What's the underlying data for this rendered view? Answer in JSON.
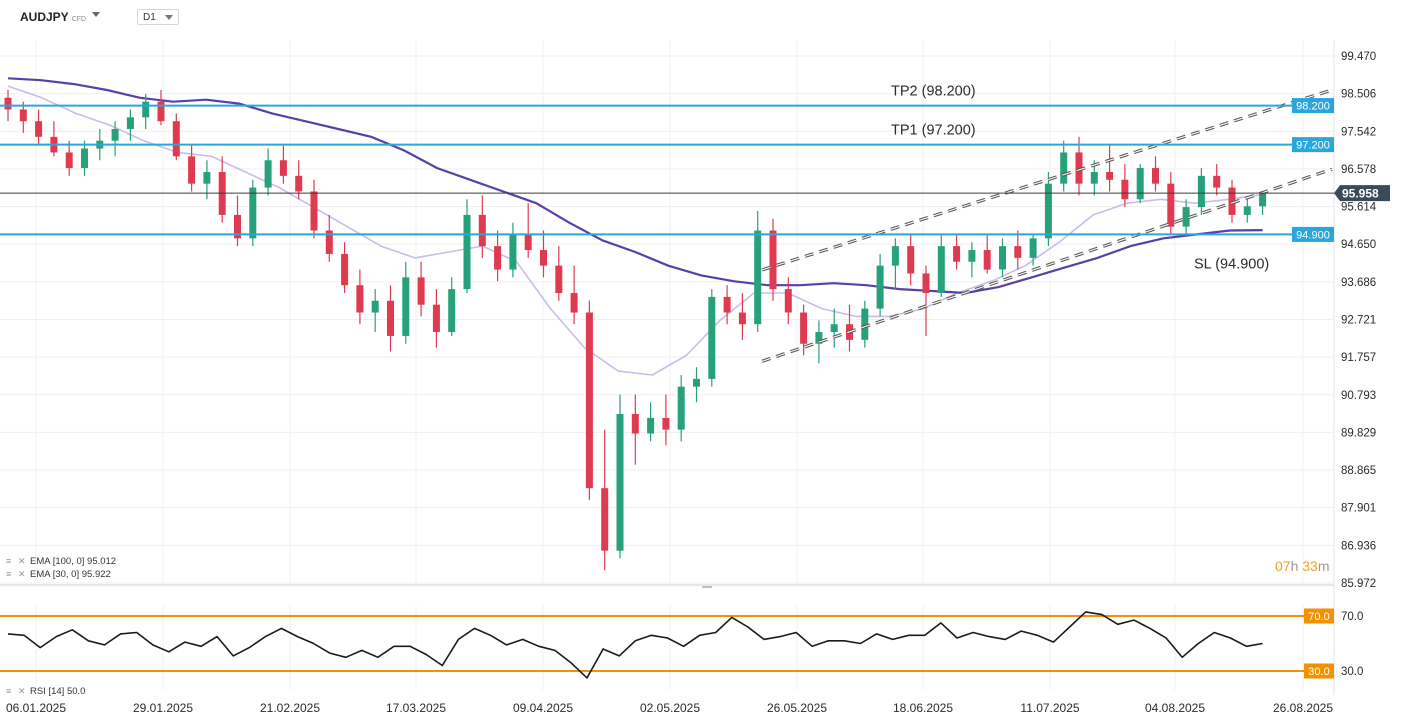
{
  "header": {
    "symbol": "AUDJPY",
    "symbol_type": "CFD",
    "timeframe": "D1"
  },
  "indicators": {
    "ema100": {
      "label": "EMA [100, 0] 95.012"
    },
    "ema30": {
      "label": "EMA [30, 0] 95.922"
    },
    "rsi": {
      "label": "RSI [14] 50.0"
    }
  },
  "timer": {
    "hours": "07",
    "h_unit": "h",
    "minutes": "33",
    "m_unit": "m"
  },
  "colors": {
    "up": "#26a17b",
    "down": "#e03a50",
    "level": "#2aa6dc",
    "ema100": "#5b3fa8",
    "ema30": "#c9bde6",
    "rsi_band": "#f39200"
  },
  "chart_data": {
    "type": "candlestick",
    "y_ticks": [
      "99.470",
      "98.506",
      "97.542",
      "96.578",
      "95.614",
      "94.650",
      "93.686",
      "92.721",
      "91.757",
      "90.793",
      "89.829",
      "88.865",
      "87.901",
      "86.936",
      "85.972"
    ],
    "ylim": [
      85.972,
      99.47
    ],
    "x_ticks": [
      "06.01.2025",
      "29.01.2025",
      "21.02.2025",
      "17.03.2025",
      "09.04.2025",
      "02.05.2025",
      "26.05.2025",
      "18.06.2025",
      "11.07.2025",
      "04.08.2025",
      "26.08.2025"
    ],
    "current_price": "95.958",
    "current_value": 95.958,
    "levels": [
      {
        "value": 98.2,
        "tag": "98.200",
        "label": "TP2 (98.200)"
      },
      {
        "value": 97.2,
        "tag": "97.200",
        "label": "TP1 (97.200)"
      },
      {
        "value": 94.9,
        "tag": "94.900",
        "label": "SL (94.900)"
      }
    ],
    "channel": {
      "upper": [
        [
          93.99,
          98.6
        ]
      ],
      "lower": [
        [
          91.65,
          96.57
        ]
      ]
    },
    "ema100": [
      98.9,
      98.85,
      98.75,
      98.6,
      98.4,
      98.3,
      98.35,
      98.25,
      98.0,
      97.8,
      97.6,
      97.4,
      97.05,
      96.6,
      96.3,
      96.0,
      95.7,
      95.2,
      94.75,
      94.45,
      94.1,
      93.85,
      93.7,
      93.6,
      93.6,
      93.65,
      93.6,
      93.5,
      93.45,
      93.4,
      93.55,
      93.8,
      94.05,
      94.3,
      94.6,
      94.8,
      94.9,
      95.0,
      95.01
    ],
    "ema30": [
      98.7,
      98.4,
      98.0,
      97.7,
      97.3,
      97.0,
      96.9,
      96.5,
      96.1,
      95.6,
      95.1,
      94.6,
      94.3,
      94.45,
      94.6,
      94.2,
      93.0,
      92.0,
      91.4,
      91.3,
      91.8,
      92.7,
      93.4,
      93.4,
      93.0,
      92.8,
      92.8,
      93.0,
      93.4,
      93.7,
      94.1,
      94.7,
      95.4,
      95.7,
      95.8,
      95.7,
      95.8,
      95.92
    ],
    "ohlc": [
      [
        98.4,
        98.6,
        97.8,
        98.1
      ],
      [
        98.1,
        98.3,
        97.5,
        97.8
      ],
      [
        97.8,
        98.1,
        97.2,
        97.4
      ],
      [
        97.4,
        97.8,
        96.9,
        97.0
      ],
      [
        97.0,
        97.3,
        96.4,
        96.6
      ],
      [
        96.6,
        97.3,
        96.4,
        97.1
      ],
      [
        97.1,
        97.6,
        96.8,
        97.3
      ],
      [
        97.3,
        97.8,
        96.9,
        97.6
      ],
      [
        97.6,
        98.1,
        97.3,
        97.9
      ],
      [
        97.9,
        98.5,
        97.6,
        98.3
      ],
      [
        98.3,
        98.6,
        97.7,
        97.8
      ],
      [
        97.8,
        98.0,
        96.8,
        96.9
      ],
      [
        96.9,
        97.2,
        96.0,
        96.2
      ],
      [
        96.2,
        96.8,
        95.8,
        96.5
      ],
      [
        96.5,
        96.9,
        95.2,
        95.4
      ],
      [
        95.4,
        95.9,
        94.6,
        94.8
      ],
      [
        94.8,
        96.3,
        94.6,
        96.1
      ],
      [
        96.1,
        97.1,
        95.9,
        96.8
      ],
      [
        96.8,
        97.2,
        96.2,
        96.4
      ],
      [
        96.4,
        96.8,
        95.8,
        96.0
      ],
      [
        96.0,
        96.3,
        94.8,
        95.0
      ],
      [
        95.0,
        95.4,
        94.2,
        94.4
      ],
      [
        94.4,
        94.7,
        93.4,
        93.6
      ],
      [
        93.6,
        94.0,
        92.6,
        92.9
      ],
      [
        92.9,
        93.5,
        92.4,
        93.2
      ],
      [
        93.2,
        93.6,
        91.9,
        92.3
      ],
      [
        92.3,
        94.2,
        92.1,
        93.8
      ],
      [
        93.8,
        94.2,
        92.8,
        93.1
      ],
      [
        93.1,
        93.5,
        92.0,
        92.4
      ],
      [
        92.4,
        93.8,
        92.3,
        93.5
      ],
      [
        93.5,
        95.8,
        93.4,
        95.4
      ],
      [
        95.4,
        95.9,
        94.3,
        94.6
      ],
      [
        94.6,
        95.0,
        93.7,
        94.0
      ],
      [
        94.0,
        95.2,
        93.8,
        94.9
      ],
      [
        94.9,
        95.7,
        94.3,
        94.5
      ],
      [
        94.5,
        95.0,
        93.8,
        94.1
      ],
      [
        94.1,
        94.6,
        93.2,
        93.4
      ],
      [
        93.4,
        94.1,
        92.6,
        92.9
      ],
      [
        92.9,
        93.2,
        88.1,
        88.4
      ],
      [
        88.4,
        89.9,
        86.3,
        86.8
      ],
      [
        86.8,
        90.8,
        86.6,
        90.3
      ],
      [
        90.3,
        90.8,
        89.0,
        89.8
      ],
      [
        89.8,
        90.6,
        89.6,
        90.2
      ],
      [
        90.2,
        90.8,
        89.5,
        89.9
      ],
      [
        89.9,
        91.3,
        89.6,
        91.0
      ],
      [
        91.0,
        91.5,
        90.6,
        91.2
      ],
      [
        91.2,
        93.5,
        91.0,
        93.3
      ],
      [
        93.3,
        93.6,
        92.6,
        92.9
      ],
      [
        92.9,
        93.4,
        92.2,
        92.6
      ],
      [
        92.6,
        95.5,
        92.4,
        95.0
      ],
      [
        95.0,
        95.3,
        93.2,
        93.5
      ],
      [
        93.5,
        93.8,
        92.6,
        92.9
      ],
      [
        92.9,
        93.1,
        91.8,
        92.1
      ],
      [
        92.1,
        92.7,
        91.6,
        92.4
      ],
      [
        92.4,
        93.0,
        92.0,
        92.6
      ],
      [
        92.6,
        93.1,
        91.9,
        92.2
      ],
      [
        92.2,
        93.2,
        92.0,
        93.0
      ],
      [
        93.0,
        94.4,
        92.8,
        94.1
      ],
      [
        94.1,
        94.8,
        93.5,
        94.6
      ],
      [
        94.6,
        94.9,
        93.6,
        93.9
      ],
      [
        93.9,
        94.1,
        92.3,
        93.4
      ],
      [
        93.4,
        94.9,
        93.3,
        94.6
      ],
      [
        94.6,
        94.9,
        94.0,
        94.2
      ],
      [
        94.2,
        94.7,
        93.8,
        94.5
      ],
      [
        94.5,
        94.9,
        93.9,
        94.0
      ],
      [
        94.0,
        94.8,
        93.8,
        94.6
      ],
      [
        94.6,
        95.0,
        94.0,
        94.3
      ],
      [
        94.3,
        94.9,
        94.1,
        94.8
      ],
      [
        94.8,
        96.5,
        94.6,
        96.2
      ],
      [
        96.2,
        97.3,
        96.0,
        97.0
      ],
      [
        97.0,
        97.4,
        95.9,
        96.2
      ],
      [
        96.2,
        96.8,
        95.9,
        96.5
      ],
      [
        96.5,
        97.2,
        96.0,
        96.3
      ],
      [
        96.3,
        96.7,
        95.6,
        95.8
      ],
      [
        95.8,
        96.7,
        95.7,
        96.6
      ],
      [
        96.6,
        96.9,
        96.0,
        96.2
      ],
      [
        96.2,
        96.5,
        94.9,
        95.1
      ],
      [
        95.1,
        95.8,
        94.9,
        95.6
      ],
      [
        95.6,
        96.6,
        95.4,
        96.4
      ],
      [
        96.4,
        96.7,
        95.9,
        96.1
      ],
      [
        96.1,
        96.3,
        95.2,
        95.4
      ],
      [
        95.4,
        95.8,
        95.2,
        95.62
      ],
      [
        95.62,
        95.99,
        95.4,
        95.96
      ]
    ],
    "rsi": {
      "values": [
        57,
        56,
        47,
        55,
        60,
        52,
        49,
        57,
        58,
        49,
        44,
        51,
        48,
        55,
        41,
        47,
        55,
        61,
        55,
        50,
        43,
        40,
        45,
        40,
        48,
        48,
        42,
        34,
        53,
        61,
        56,
        49,
        53,
        48,
        45,
        36,
        25,
        46,
        41,
        52,
        56,
        54,
        48,
        56,
        58,
        69,
        62,
        53,
        55,
        58,
        48,
        52,
        52,
        50,
        57,
        53,
        56,
        56,
        65,
        54,
        58,
        55,
        53,
        59,
        56,
        51,
        62,
        73,
        71,
        64,
        67,
        61,
        54,
        40,
        50,
        58,
        54,
        48,
        50
      ],
      "levels": [
        {
          "value": 70,
          "tag": "70.0"
        },
        {
          "value": 30,
          "tag": "30.0"
        }
      ],
      "ylim": [
        20,
        80
      ]
    }
  }
}
